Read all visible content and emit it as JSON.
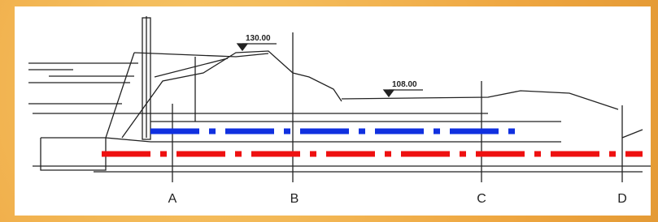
{
  "elevation_labels": [
    "130.00",
    "108.00"
  ],
  "section_labels": [
    "A",
    "B",
    "C",
    "D"
  ]
}
